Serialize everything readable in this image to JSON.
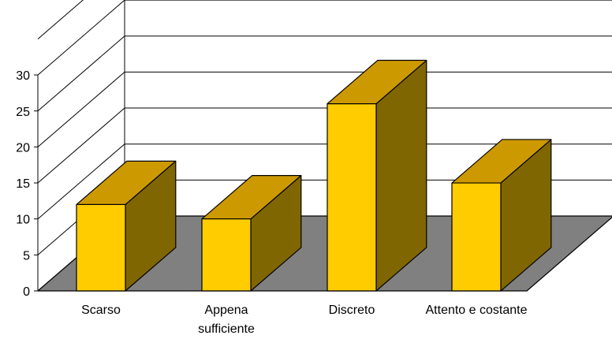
{
  "chart_data": {
    "type": "bar",
    "style": "3d",
    "categories": [
      "Scarso",
      "Appena\nsufficiente",
      "Discreto",
      "Attento e costante"
    ],
    "values": [
      12,
      10,
      26,
      15
    ],
    "ylim": [
      0,
      30
    ],
    "yticks": [
      0,
      5,
      10,
      15,
      20,
      25,
      30
    ],
    "grid": true,
    "legend": "none",
    "colors": {
      "bar_front": "#FFCC00",
      "bar_top": "#CC9900",
      "bar_side": "#806600",
      "floor": "#808080",
      "background": "#FFFFFF"
    }
  }
}
